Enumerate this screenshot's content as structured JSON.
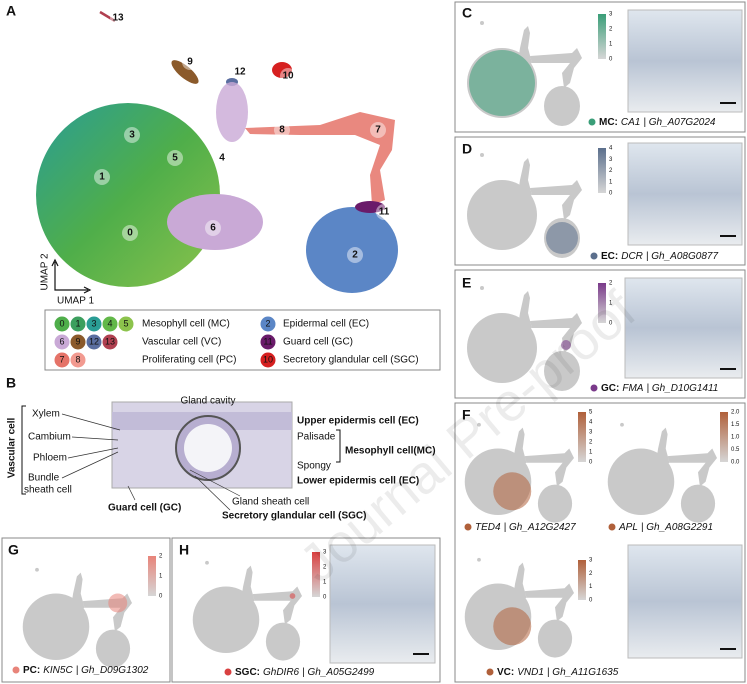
{
  "A": {
    "label": "A",
    "clusters": [
      "13",
      "9",
      "12",
      "10",
      "8",
      "7",
      "3",
      "1",
      "5",
      "4",
      "0",
      "6",
      "11",
      "2"
    ],
    "umap_y": "UMAP 2",
    "umap_x": "UMAP 1",
    "legend": [
      {
        "numbers": [
          "0",
          "1",
          "3",
          "4",
          "5"
        ],
        "colors": [
          "#4fae4a",
          "#3c9f5e",
          "#2a9d95",
          "#62b848",
          "#8cc34c"
        ],
        "text": "Mesophyll cell (MC)"
      },
      {
        "numbers": [
          "6",
          "9",
          "12",
          "13"
        ],
        "colors": [
          "#c9a9d6",
          "#8b5a2b",
          "#5a6ea0",
          "#b04050"
        ],
        "text": "Vascular cell (VC)"
      },
      {
        "numbers": [
          "7",
          "8"
        ],
        "colors": [
          "#e57368",
          "#f29a90"
        ],
        "text": "Proliferating cell (PC)"
      },
      {
        "numbers": [
          "2"
        ],
        "colors": [
          "#5b86c6"
        ],
        "text": "Epidermal cell (EC)"
      },
      {
        "numbers": [
          "11"
        ],
        "colors": [
          "#6a1b6a"
        ],
        "text": "Guard cell (GC)"
      },
      {
        "numbers": [
          "10"
        ],
        "colors": [
          "#d62020"
        ],
        "text": "Secretory glandular cell (SGC)"
      }
    ]
  },
  "B": {
    "label": "B",
    "vascular": "Vascular cell",
    "xylem": "Xylem",
    "cambium": "Cambium",
    "phloem": "Phloem",
    "bundle1": "Bundle",
    "bundle2": "sheath cell",
    "cavity": "Gland cavity",
    "upper": "Upper epidermis cell (EC)",
    "palisade": "Palisade",
    "mesophyll": "Mesophyll cell(MC)",
    "spongy": "Spongy",
    "lower": "Lower epidermis cell (EC)",
    "sheath": "Gland sheath cell",
    "sgc": "Secretory glandular cell (SGC)",
    "guard": "Guard cell (GC)"
  },
  "C": {
    "label": "C",
    "plots": [
      {
        "colorbar": [
          "3",
          "2",
          "1",
          "0"
        ],
        "caption": {
          "cell": "MC:",
          "gene": "CA1",
          "id": "| Gh_A07G2024"
        }
      }
    ]
  },
  "D": {
    "label": "D",
    "plots": [
      {
        "colorbar": [
          "4",
          "3",
          "2",
          "1",
          "0"
        ],
        "caption": {
          "cell": "EC:",
          "gene": "DCR",
          "id": "| Gh_A08G0877"
        }
      }
    ]
  },
  "E": {
    "label": "E",
    "plots": [
      {
        "colorbar": [
          "2",
          "1",
          "0"
        ],
        "caption": {
          "cell": "GC:",
          "gene": "FMA",
          "id": "| Gh_D10G1411"
        }
      }
    ]
  },
  "F": {
    "label": "F",
    "plots": [
      {
        "colorbar": [
          "5",
          "4",
          "3",
          "2",
          "1",
          "0"
        ],
        "caption": {
          "gene": "TED4",
          "id": "| Gh_A12G2427"
        }
      },
      {
        "colorbar": [
          "2.0",
          "1.5",
          "1.0",
          "0.5",
          "0.0"
        ],
        "caption": {
          "gene": "APL",
          "id": "| Gh_A08G2291"
        }
      },
      {
        "colorbar": [
          "3",
          "2",
          "1",
          "0"
        ],
        "caption": {
          "cell": "VC:",
          "gene": "VND1",
          "id": "| Gh_A11G1635"
        }
      }
    ]
  },
  "G": {
    "label": "G",
    "plots": [
      {
        "colorbar": [
          "2",
          "1",
          "0"
        ],
        "caption": {
          "cell": "PC:",
          "gene": "KIN5C",
          "id": "| Gh_D09G1302"
        }
      }
    ]
  },
  "H": {
    "label": "H",
    "plots": [
      {
        "colorbar": [
          "3",
          "2",
          "1",
          "0"
        ],
        "caption": {
          "cell": "SGC:",
          "gene": "GhDIR6",
          "id": "| Gh_A05G2499"
        }
      }
    ]
  },
  "watermark": "Journal Pre-proof"
}
